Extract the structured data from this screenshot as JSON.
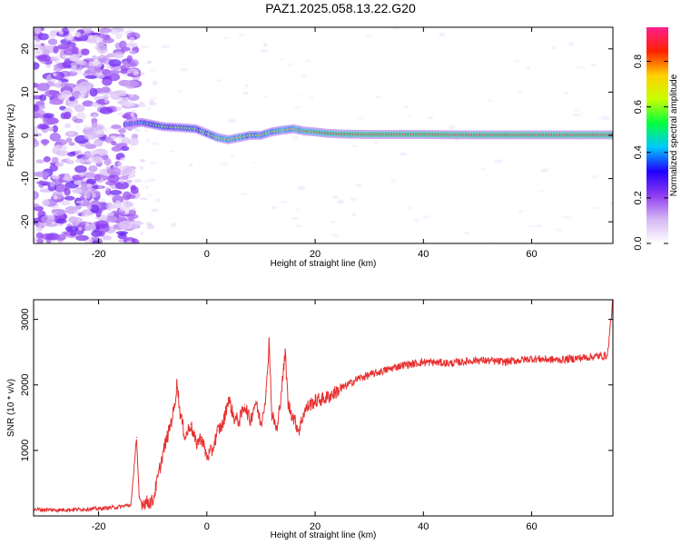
{
  "title": "PAZ1.2025.058.13.22.G20",
  "chart_data": [
    {
      "type": "heatmap",
      "xlabel": "Height of straight line (km)",
      "ylabel": "Frequency (Hz)",
      "xlim": [
        -32,
        75
      ],
      "ylim": [
        -25,
        25
      ],
      "xticks": [
        "-20",
        "0",
        "20",
        "40",
        "60"
      ],
      "xtick_values": [
        -20,
        0,
        20,
        40,
        60
      ],
      "yticks": [
        "20",
        "10",
        "0",
        "-10",
        "-20"
      ],
      "ytick_values": [
        20,
        10,
        0,
        -10,
        -20
      ],
      "colorbar": {
        "label": "Normalized spectral amplitude",
        "range": [
          0,
          0.95
        ],
        "ticks": [
          "0.0",
          "0.2",
          "0.4",
          "0.6",
          "0.8"
        ],
        "tick_values": [
          0.0,
          0.2,
          0.4,
          0.6,
          0.8
        ],
        "colormap": [
          "#ffffff",
          "#d6b8f5",
          "#8e3cf0",
          "#2000ff",
          "#00c8ff",
          "#00ff40",
          "#c8ff00",
          "#ffd000",
          "#ff2000",
          "#ff2090"
        ]
      },
      "ridge": {
        "x": [
          -15,
          -12,
          -10,
          -8,
          -5,
          -2,
          0,
          2,
          4,
          6,
          8,
          10,
          12,
          14,
          16,
          18,
          20,
          22,
          25,
          30,
          40,
          50,
          60,
          70,
          75
        ],
        "freq": [
          2.5,
          3.0,
          2.5,
          2.0,
          1.8,
          1.5,
          0.5,
          -0.5,
          -1.0,
          -0.5,
          0.0,
          0.0,
          0.8,
          1.2,
          1.5,
          1.0,
          0.8,
          0.5,
          0.3,
          0.2,
          0.2,
          0.1,
          0.1,
          0.1,
          0.1
        ],
        "amplitude": [
          0.4,
          0.45,
          0.55,
          0.6,
          0.65,
          0.6,
          0.62,
          0.7,
          0.75,
          0.72,
          0.7,
          0.72,
          0.7,
          0.75,
          0.72,
          0.8,
          0.82,
          0.85,
          0.88,
          0.9,
          0.9,
          0.9,
          0.9,
          0.9,
          0.9
        ]
      }
    },
    {
      "type": "line",
      "xlabel": "Height of straight line (km)",
      "ylabel": "SNR (10 * v/v)",
      "xlim": [
        -32,
        75
      ],
      "ylim": [
        0,
        3300
      ],
      "xticks": [
        "-20",
        "0",
        "20",
        "40",
        "60"
      ],
      "xtick_values": [
        -20,
        0,
        20,
        40,
        60
      ],
      "yticks": [
        "1000",
        "2000",
        "3000"
      ],
      "ytick_values": [
        1000,
        2000,
        3000
      ],
      "color": "#e83030",
      "series": [
        {
          "x": [
            -32,
            -28,
            -24,
            -20,
            -16,
            -14,
            -13,
            -12.5,
            -12,
            -10,
            -9,
            -8,
            -7,
            -6,
            -5.5,
            -5,
            -4,
            -3,
            -2,
            -1,
            0,
            1,
            2,
            3,
            4,
            5,
            6,
            7,
            8,
            9,
            10,
            11,
            11.5,
            12,
            13,
            14,
            14.5,
            15,
            16,
            17,
            18,
            19,
            20,
            22,
            24,
            26,
            28,
            30,
            32,
            34,
            36,
            38,
            40,
            45,
            50,
            55,
            60,
            65,
            70,
            74,
            75
          ],
          "y": [
            100,
            90,
            100,
            110,
            140,
            170,
            1200,
            280,
            200,
            220,
            600,
            1000,
            1300,
            1650,
            2050,
            1600,
            1200,
            1400,
            1100,
            1200,
            900,
            1000,
            1300,
            1400,
            1800,
            1500,
            1450,
            1700,
            1450,
            1750,
            1400,
            1900,
            2700,
            1550,
            1300,
            2100,
            2500,
            1700,
            1500,
            1300,
            1600,
            1700,
            1750,
            1800,
            1900,
            2000,
            2100,
            2150,
            2200,
            2250,
            2300,
            2320,
            2350,
            2330,
            2380,
            2350,
            2400,
            2380,
            2420,
            2450,
            3300
          ]
        }
      ]
    }
  ]
}
